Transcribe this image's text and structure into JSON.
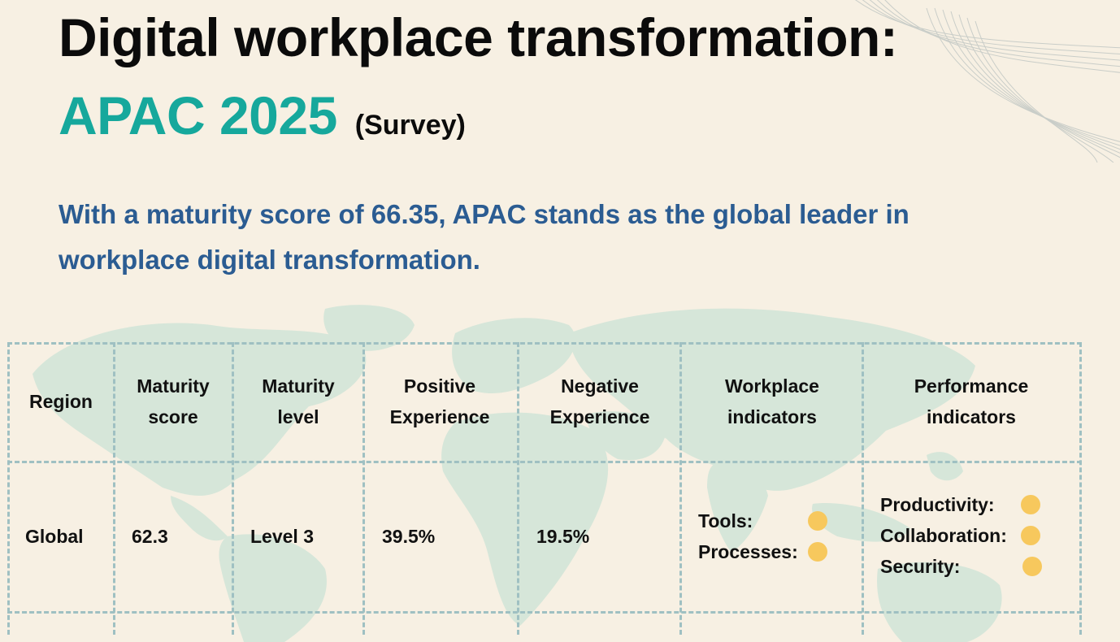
{
  "title": {
    "line1": "Digital workplace transformation:",
    "accent": "APAC 2025",
    "tag": "(Survey)"
  },
  "subtitle": "With a maturity score of 66.35, APAC stands as the global leader in workplace digital transformation.",
  "table": {
    "headers": {
      "region": "Region",
      "maturity_score": [
        "Maturity",
        "score"
      ],
      "maturity_level": [
        "Maturity",
        "level"
      ],
      "positive_experience": [
        "Positive",
        "Experience"
      ],
      "negative_experience": [
        "Negative",
        "Experience"
      ],
      "workplace_indicators": [
        "Workplace",
        "indicators"
      ],
      "performance_indicators": [
        "Performance",
        "indicators"
      ]
    },
    "rows": [
      {
        "region": "Global",
        "maturity_score": "62.3",
        "maturity_level": "Level 3",
        "positive_experience": "39.5%",
        "negative_experience": "19.5%",
        "workplace_indicators": [
          {
            "label": "Tools:",
            "status": "yellow"
          },
          {
            "label": "Processes:",
            "status": "yellow"
          }
        ],
        "performance_indicators": [
          {
            "label": "Productivity:",
            "status": "yellow"
          },
          {
            "label": "Collaboration:",
            "status": "yellow"
          },
          {
            "label": "Security:",
            "status": "yellow"
          }
        ]
      }
    ]
  },
  "colors": {
    "background": "#f7f0e3",
    "accent_teal": "#16a89c",
    "subtitle_blue": "#2b5c92",
    "indicator_yellow": "#f7c85d",
    "grid_dash": "#9fc0c2",
    "map_fill": "#d6e6d9"
  }
}
